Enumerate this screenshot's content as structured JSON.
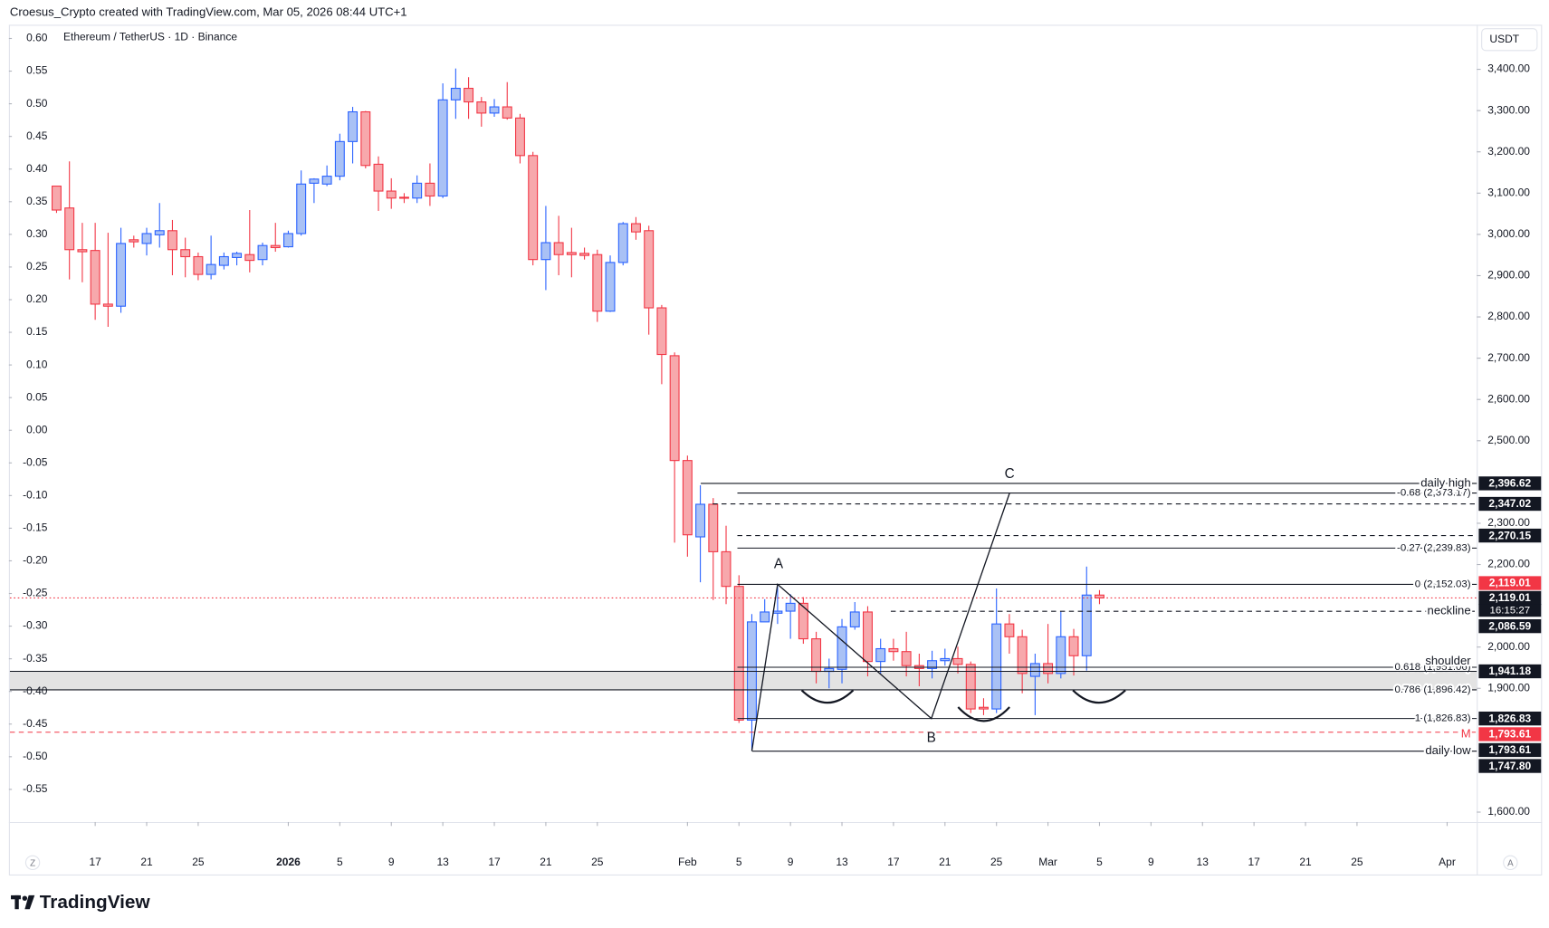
{
  "header": "Croesus_Crypto created with TradingView.com, Mar 05, 2026 08:44 UTC+1",
  "brand": "TradingView",
  "chart_data": {
    "type": "candlestick",
    "title": "Ethereum / TetherUS · 1D · Binance",
    "currency": "USDT",
    "buttons": [
      "Z",
      "A"
    ],
    "up_color": "#2962ff",
    "up_fill": "#a9c1f5",
    "down_color": "#f23645",
    "down_fill": "#f7a8ac",
    "grid": false,
    "ohlc": {
      "open": [
        3117,
        3064,
        2963,
        2961,
        2831,
        2826,
        2987,
        2978,
        2999,
        3009,
        2963,
        2946,
        2903,
        2925,
        2944,
        2951,
        2939,
        2973,
        2970,
        3002,
        3124,
        3122,
        3141,
        3225,
        3297,
        3170,
        3105,
        3090,
        3088,
        3124,
        3093,
        3326,
        3354,
        3321,
        3294,
        3309,
        3282,
        3191,
        2939,
        2980,
        2956,
        2954,
        2951,
        2814,
        2932,
        3026,
        3009,
        2822,
        2706,
        2452,
        2267,
        2346,
        2231,
        2147,
        1823,
        2061,
        2082,
        2087,
        2106,
        2020,
        1941,
        1946,
        2049,
        2085,
        1965,
        1996,
        1989,
        1955,
        1948,
        1967,
        1972,
        1958,
        1854,
        1850,
        2056,
        2025,
        1929,
        1960,
        1936,
        2025,
        1979,
        2126
      ],
      "high": [
        3117,
        3177,
        3028,
        3028,
        3004,
        3016,
        2997,
        3016,
        3076,
        3035,
        2992,
        2956,
        2997,
        2956,
        2958,
        3059,
        2980,
        3028,
        3009,
        3155,
        3136,
        3167,
        3244,
        3309,
        3299,
        3189,
        3136,
        3100,
        3143,
        3172,
        3366,
        3402,
        3381,
        3333,
        3328,
        3369,
        3292,
        3200,
        3069,
        3045,
        3016,
        2968,
        2963,
        2949,
        3030,
        3042,
        3021,
        2829,
        2714,
        2464,
        2392,
        2361,
        2294,
        2174,
        2080,
        2116,
        2147,
        2128,
        2121,
        2037,
        1972,
        2068,
        2109,
        2099,
        2020,
        2020,
        2037,
        1984,
        1991,
        1996,
        2001,
        1965,
        1876,
        2142,
        2080,
        2042,
        1984,
        2056,
        2087,
        2044,
        2195,
        2138
      ],
      "low": [
        3052,
        2891,
        2884,
        2793,
        2776,
        2810,
        2968,
        2949,
        2968,
        2901,
        2896,
        2889,
        2891,
        2915,
        2925,
        2908,
        2925,
        2958,
        2968,
        2997,
        3076,
        3117,
        3131,
        3172,
        3160,
        3057,
        3062,
        3076,
        3076,
        3069,
        3088,
        3280,
        3280,
        3261,
        3285,
        3278,
        3172,
        2925,
        2865,
        2901,
        2896,
        2939,
        2788,
        2812,
        2925,
        2987,
        2757,
        2637,
        2253,
        2219,
        2157,
        2114,
        2104,
        1816,
        1748,
        2061,
        2056,
        2020,
        2008,
        1912,
        1900,
        1912,
        2042,
        1929,
        1936,
        1967,
        1929,
        1905,
        1924,
        1955,
        1936,
        1840,
        1835,
        1840,
        1984,
        1888,
        1835,
        1912,
        1924,
        1931,
        1943,
        2104
      ],
      "close": [
        3059,
        2963,
        2958,
        2831,
        2826,
        2978,
        2982,
        3002,
        3009,
        2963,
        2946,
        2903,
        2927,
        2946,
        2954,
        2937,
        2973,
        2968,
        3002,
        3122,
        3134,
        3141,
        3225,
        3297,
        3167,
        3105,
        3088,
        3088,
        3124,
        3093,
        3326,
        3354,
        3321,
        3294,
        3309,
        3282,
        3191,
        2939,
        2980,
        2951,
        2951,
        2949,
        2814,
        2932,
        3026,
        3006,
        2822,
        2709,
        2452,
        2272,
        2346,
        2231,
        2147,
        1823,
        2061,
        2085,
        2087,
        2106,
        2020,
        1941,
        1948,
        2049,
        2085,
        1965,
        1996,
        1989,
        1955,
        1948,
        1967,
        1972,
        1958,
        1850,
        1850,
        2056,
        2025,
        1936,
        1960,
        1936,
        2025,
        1979,
        2126,
        2119.01
      ]
    },
    "xlim": [
      -3.7,
      110.3
    ],
    "xticks": [
      {
        "value": 3,
        "label": "17"
      },
      {
        "value": 7,
        "label": "21"
      },
      {
        "value": 11,
        "label": "25"
      },
      {
        "value": 18,
        "label": "2026"
      },
      {
        "value": 22,
        "label": "5"
      },
      {
        "value": 26,
        "label": "9"
      },
      {
        "value": 30,
        "label": "13"
      },
      {
        "value": 34,
        "label": "17"
      },
      {
        "value": 38,
        "label": "21"
      },
      {
        "value": 42,
        "label": "25"
      },
      {
        "value": 49,
        "label": "Feb"
      },
      {
        "value": 53,
        "label": "5"
      },
      {
        "value": 57,
        "label": "9"
      },
      {
        "value": 61,
        "label": "13"
      },
      {
        "value": 65,
        "label": "17"
      },
      {
        "value": 69,
        "label": "21"
      },
      {
        "value": 73,
        "label": "25"
      },
      {
        "value": 77,
        "label": "Mar"
      },
      {
        "value": 81,
        "label": "5"
      },
      {
        "value": 85,
        "label": "9"
      },
      {
        "value": 89,
        "label": "13"
      },
      {
        "value": 93,
        "label": "17"
      },
      {
        "value": 97,
        "label": "21"
      },
      {
        "value": 101,
        "label": "25"
      },
      {
        "value": 108,
        "label": "Apr"
      }
    ],
    "ylim": [
      1576,
      3508
    ],
    "yticks": [
      {
        "value": 1600,
        "label": "1,600.00"
      },
      {
        "value": 1900,
        "label": "1,900.00"
      },
      {
        "value": 2000,
        "label": "2,000.00"
      },
      {
        "value": 2200,
        "label": "2,200.00"
      },
      {
        "value": 2300,
        "label": "2,300.00"
      },
      {
        "value": 2500,
        "label": "2,500.00"
      },
      {
        "value": 2600,
        "label": "2,600.00"
      },
      {
        "value": 2700,
        "label": "2,700.00"
      },
      {
        "value": 2800,
        "label": "2,800.00"
      },
      {
        "value": 2900,
        "label": "2,900.00"
      },
      {
        "value": 3000,
        "label": "3,000.00"
      },
      {
        "value": 3100,
        "label": "3,100.00"
      },
      {
        "value": 3200,
        "label": "3,200.00"
      },
      {
        "value": 3300,
        "label": "3,300.00"
      },
      {
        "value": 3400,
        "label": "3,400.00"
      }
    ],
    "y2lim": [
      -0.6,
      0.621
    ],
    "y2ticks": [
      {
        "value": 0.6,
        "label": "0.60"
      },
      {
        "value": 0.55,
        "label": "0.55"
      },
      {
        "value": 0.5,
        "label": "0.50"
      },
      {
        "value": 0.45,
        "label": "0.45"
      },
      {
        "value": 0.4,
        "label": "0.40"
      },
      {
        "value": 0.35,
        "label": "0.35"
      },
      {
        "value": 0.3,
        "label": "0.30"
      },
      {
        "value": 0.25,
        "label": "0.25"
      },
      {
        "value": 0.2,
        "label": "0.20"
      },
      {
        "value": 0.15,
        "label": "0.15"
      },
      {
        "value": 0.1,
        "label": "0.10"
      },
      {
        "value": 0.05,
        "label": "0.05"
      },
      {
        "value": 0,
        "label": "0.00"
      },
      {
        "value": -0.05,
        "label": "-0.05"
      },
      {
        "value": -0.1,
        "label": "-0.10"
      },
      {
        "value": -0.15,
        "label": "-0.15"
      },
      {
        "value": -0.2,
        "label": "-0.20"
      },
      {
        "value": -0.25,
        "label": "-0.25"
      },
      {
        "value": -0.3,
        "label": "-0.30"
      },
      {
        "value": -0.35,
        "label": "-0.35"
      },
      {
        "value": -0.4,
        "label": "-0.40"
      },
      {
        "value": -0.45,
        "label": "-0.45"
      },
      {
        "value": -0.5,
        "label": "-0.50"
      },
      {
        "value": -0.55,
        "label": "-0.55"
      }
    ],
    "levels": [
      {
        "value": 2396.62,
        "label": "2,396.62",
        "name": "daily high",
        "style": "solid",
        "color": "#131722",
        "badge": "#131722"
      },
      {
        "value": 2347.02,
        "label": "2,347.02",
        "style": "dashed",
        "color": "#131722",
        "badge": "#131722"
      },
      {
        "value": 2270.15,
        "label": "2,270.15",
        "style": "dashed",
        "color": "#131722",
        "badge": "#131722"
      },
      {
        "value": 2119.01,
        "label": "2,119.01",
        "style": "dotted",
        "color": "#f23645",
        "badge": "#f23645"
      },
      {
        "value": 2119.01,
        "label": "2,119.01",
        "countdown": "16:15:27",
        "style": "none",
        "color": "#131722",
        "badge": "#131722"
      },
      {
        "value": 2086.59,
        "label": "2,086.59",
        "name": "neckline",
        "style": "dashed",
        "color": "#131722",
        "badge": "#131722"
      },
      {
        "value": 1941.18,
        "label": "1,941.18",
        "name": "shoulder",
        "style": "solid",
        "color": "#131722",
        "badge": "#131722"
      },
      {
        "value": 1826.83,
        "label": "1,826.83",
        "style": "none",
        "color": "#131722",
        "badge": "#131722"
      },
      {
        "value": 1793.61,
        "label": "1,793.61",
        "name": "M",
        "style": "dashed",
        "color": "#f23645",
        "badge": "#f23645"
      },
      {
        "value": 1793.61,
        "label": "1,793.61",
        "style": "none",
        "color": "#131722",
        "badge": "#131722"
      },
      {
        "value": 1747.8,
        "label": "1,747.80",
        "name": "daily low",
        "style": "solid",
        "color": "#131722",
        "badge": "#131722"
      }
    ],
    "fib": [
      {
        "value": 2373.17,
        "label": "-0.68 (2,373.17)"
      },
      {
        "value": 2239.83,
        "label": "-0.27 (2,239.83)"
      },
      {
        "value": 2152.03,
        "label": "0 (2,152.03)"
      },
      {
        "value": 1951.06,
        "label": "0.618 (1,951.06)"
      },
      {
        "value": 1896.42,
        "label": "0.786 (1,896.42)"
      },
      {
        "value": 1826.83,
        "label": "1 (1,826.83)"
      }
    ],
    "zone_color": "#e3e3e3",
    "pattern_labels": [
      "A",
      "B",
      "C"
    ]
  }
}
